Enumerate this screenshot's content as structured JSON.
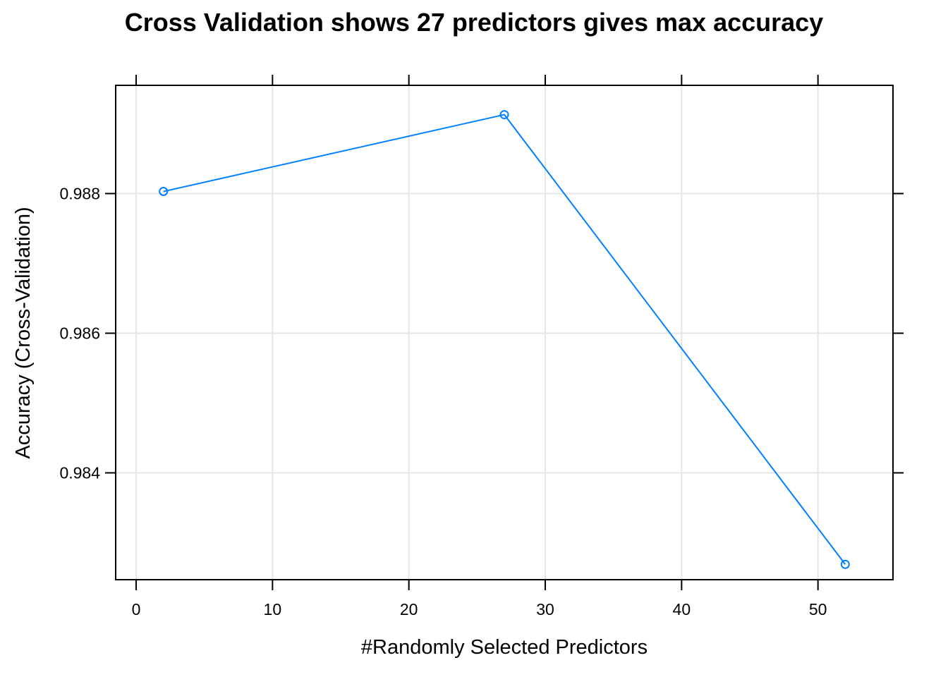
{
  "chart_data": {
    "type": "line",
    "title": "Cross Validation shows 27 predictors gives max accuracy",
    "xlabel": "#Randomly Selected Predictors",
    "ylabel": "Accuracy (Cross-Validation)",
    "xlim": [
      -1.5,
      55.5
    ],
    "ylim": [
      0.98247,
      0.98955
    ],
    "x_ticks": [
      0,
      10,
      20,
      30,
      40,
      50
    ],
    "x_tick_labels": [
      "0",
      "10",
      "20",
      "30",
      "40",
      "50"
    ],
    "y_ticks": [
      0.984,
      0.986,
      0.988
    ],
    "y_tick_labels": [
      "0.984",
      "0.986",
      "0.988"
    ],
    "grid": true,
    "series": [
      {
        "x": [
          2,
          27,
          52
        ],
        "values": [
          0.98803,
          0.98913,
          0.98269
        ],
        "color": "#0080ff",
        "marker": "open-circle"
      }
    ],
    "colors": {
      "line": "#0080ff",
      "grid": "#e6e6e6",
      "frame": "#000000"
    }
  }
}
